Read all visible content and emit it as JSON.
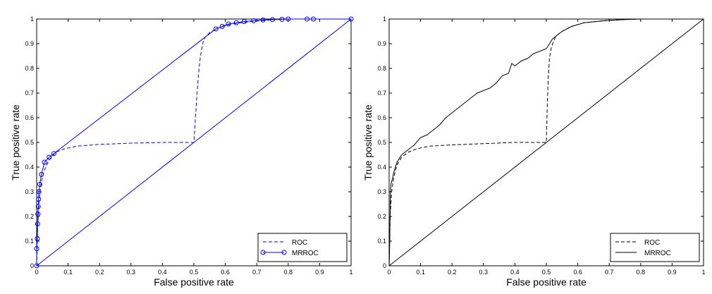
{
  "chart_data": [
    {
      "type": "line",
      "xlabel": "False positive rate",
      "ylabel": "True positive rate",
      "xlim": [
        0,
        1
      ],
      "ylim": [
        0,
        1
      ],
      "grid": false,
      "legend_position": "bottom-right",
      "xticks": [
        "0",
        "0.1",
        "0.2",
        "0.3",
        "0.4",
        "0.5",
        "0.6",
        "0.7",
        "0.8",
        "0.9",
        "1"
      ],
      "yticks": [
        "0",
        "0.1",
        "0.2",
        "0.3",
        "0.4",
        "0.5",
        "0.6",
        "0.7",
        "0.8",
        "0.9",
        "1"
      ],
      "color": "#0000ff",
      "series": [
        {
          "name": "ROC",
          "style": "dashed",
          "x": [
            0,
            0.003,
            0.008,
            0.015,
            0.025,
            0.04,
            0.06,
            0.09,
            0.13,
            0.2,
            0.3,
            0.4,
            0.5,
            0.505,
            0.51,
            0.515,
            0.52,
            0.525,
            0.53,
            0.535,
            0.55,
            0.58,
            0.62,
            0.68,
            0.75,
            0.8
          ],
          "y": [
            0,
            0.15,
            0.27,
            0.34,
            0.39,
            0.43,
            0.46,
            0.475,
            0.485,
            0.492,
            0.497,
            0.5,
            0.5,
            0.6,
            0.7,
            0.78,
            0.84,
            0.88,
            0.91,
            0.925,
            0.945,
            0.965,
            0.98,
            0.99,
            0.997,
            1.0
          ]
        },
        {
          "name": "MRROC",
          "style": "solid-circle",
          "x": [
            0,
            0.0,
            0.002,
            0.003,
            0.004,
            0.005,
            0.006,
            0.007,
            0.01,
            0.015,
            0.025,
            0.04,
            0.055,
            0.57,
            0.59,
            0.61,
            0.635,
            0.66,
            0.69,
            0.72,
            0.75,
            0.78,
            0.8,
            0.86,
            0.88,
            1.0
          ],
          "y": [
            0,
            0.07,
            0.11,
            0.17,
            0.21,
            0.24,
            0.27,
            0.3,
            0.33,
            0.37,
            0.42,
            0.44,
            0.455,
            0.96,
            0.97,
            0.98,
            0.985,
            0.99,
            0.993,
            0.996,
            0.998,
            0.999,
            1.0,
            1.0,
            1.0,
            1.0
          ],
          "markers": "all"
        },
        {
          "name": "",
          "style": "solid",
          "x": [
            0,
            1
          ],
          "y": [
            0,
            1
          ]
        }
      ]
    },
    {
      "type": "line",
      "xlabel": "False positive rate",
      "ylabel": "True positive rate",
      "xlim": [
        0,
        1
      ],
      "ylim": [
        0,
        1
      ],
      "grid": false,
      "legend_position": "bottom-right",
      "xticks": [
        "0",
        "0.1",
        "0.2",
        "0.3",
        "0.4",
        "0.5",
        "0.6",
        "0.7",
        "0.8",
        "0.9",
        "1"
      ],
      "yticks": [
        "0",
        "0.1",
        "0.2",
        "0.3",
        "0.4",
        "0.5",
        "0.6",
        "0.7",
        "0.8",
        "0.9",
        "1"
      ],
      "color": "#000000",
      "series": [
        {
          "name": "ROC",
          "style": "dashed",
          "x": [
            0,
            0.003,
            0.008,
            0.015,
            0.025,
            0.04,
            0.06,
            0.09,
            0.13,
            0.2,
            0.3,
            0.4,
            0.5,
            0.503,
            0.506,
            0.51,
            0.515,
            0.52,
            0.53,
            0.55,
            0.58,
            0.62,
            0.68,
            0.75,
            0.8
          ],
          "y": [
            0,
            0.2,
            0.3,
            0.36,
            0.41,
            0.44,
            0.46,
            0.475,
            0.485,
            0.49,
            0.495,
            0.5,
            0.5,
            0.65,
            0.76,
            0.84,
            0.88,
            0.9,
            0.93,
            0.95,
            0.97,
            0.985,
            0.993,
            0.998,
            1.0
          ]
        },
        {
          "name": "MRROC",
          "style": "solid",
          "x": [
            0,
            0.002,
            0.004,
            0.006,
            0.01,
            0.015,
            0.025,
            0.04,
            0.06,
            0.08,
            0.1,
            0.12,
            0.14,
            0.16,
            0.18,
            0.2,
            0.22,
            0.24,
            0.26,
            0.28,
            0.3,
            0.32,
            0.34,
            0.36,
            0.38,
            0.39,
            0.4,
            0.42,
            0.44,
            0.46,
            0.48,
            0.5,
            0.51,
            0.52,
            0.53,
            0.55,
            0.58,
            0.62,
            0.66,
            0.7,
            0.75,
            0.8,
            0.9,
            1.0
          ],
          "y": [
            0,
            0.1,
            0.3,
            0.33,
            0.35,
            0.38,
            0.42,
            0.45,
            0.47,
            0.49,
            0.52,
            0.53,
            0.55,
            0.57,
            0.6,
            0.62,
            0.64,
            0.66,
            0.68,
            0.7,
            0.71,
            0.72,
            0.74,
            0.77,
            0.78,
            0.82,
            0.81,
            0.83,
            0.84,
            0.86,
            0.87,
            0.88,
            0.9,
            0.92,
            0.93,
            0.95,
            0.97,
            0.985,
            0.99,
            0.995,
            0.998,
            1.0,
            1.0,
            1.0
          ]
        },
        {
          "name": "",
          "style": "solid",
          "x": [
            0,
            1
          ],
          "y": [
            0,
            1
          ]
        }
      ]
    }
  ]
}
